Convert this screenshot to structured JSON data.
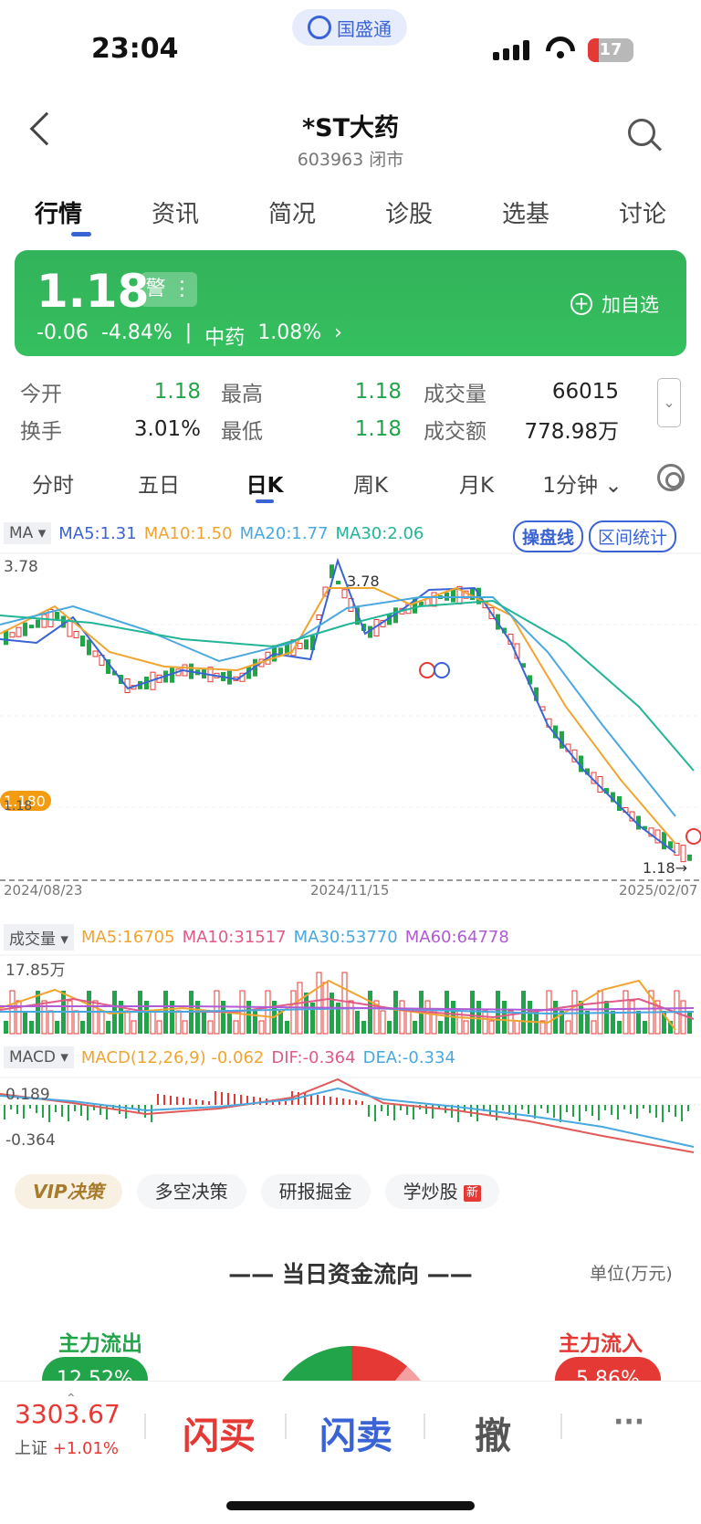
{
  "status": {
    "time": "23:04",
    "brand": "国盛通",
    "battery": "17"
  },
  "header": {
    "title": "*ST大药",
    "subtitle": "603963 闭市"
  },
  "tabs": [
    "行情",
    "资讯",
    "简况",
    "诊股",
    "选基",
    "讨论"
  ],
  "quote": {
    "price": "1.18",
    "warn": "警",
    "change": "-0.06",
    "change_pct": "-4.84%",
    "sector": "中药",
    "sector_pct": "1.08%",
    "add_label": "加自选"
  },
  "stats": {
    "open_label": "今开",
    "open": "1.18",
    "high_label": "最高",
    "high": "1.18",
    "volume_label": "成交量",
    "volume": "66015",
    "turnover_label": "换手",
    "turnover": "3.01%",
    "low_label": "最低",
    "low": "1.18",
    "amount_label": "成交额",
    "amount": "778.98万"
  },
  "period_tabs": [
    "分时",
    "五日",
    "日K",
    "周K",
    "月K",
    "1分钟"
  ],
  "ma_legend": {
    "tag": "MA",
    "ma5": "MA5:1.31",
    "ma10": "MA10:1.50",
    "ma20": "MA20:1.77",
    "ma30": "MA30:2.06",
    "btn1": "操盘线",
    "btn2": "区间统计"
  },
  "kline": {
    "y_top": "3.78",
    "y_bottom": "1.18",
    "price_tag": "1.180",
    "high_mark": "3.78",
    "last_mark": "1.18→",
    "dates": [
      "2024/08/23",
      "2024/11/15",
      "2025/02/07"
    ]
  },
  "volume_legend": {
    "tag": "成交量",
    "ma5": "MA5:16705",
    "ma10": "MA10:31517",
    "ma30": "MA30:53770",
    "ma60": "MA60:64778",
    "max": "17.85万"
  },
  "macd_legend": {
    "tag": "MACD",
    "macd": "MACD(12,26,9) -0.062",
    "dif": "DIF:-0.364",
    "dea": "DEA:-0.334",
    "top": "0.189",
    "bottom": "-0.364"
  },
  "chips": [
    "VIP决策",
    "多空决策",
    "研报掘金",
    "学炒股"
  ],
  "chip_new": "新",
  "fund_flow": {
    "title": "—— 当日资金流向 ——",
    "unit": "单位(万元)",
    "out_label": "主力流出",
    "out_pct": "12.52%",
    "in_label": "主力流入",
    "in_pct": "5.86%"
  },
  "bottom": {
    "index_value": "3303.67",
    "index_name": "上证",
    "index_pct": "+1.01%",
    "buy": "闪买",
    "sell": "闪卖",
    "cancel": "撤",
    "more": "···"
  },
  "colors": {
    "up": "#e53935",
    "down": "#22a54a",
    "accent": "#3a63d6"
  }
}
